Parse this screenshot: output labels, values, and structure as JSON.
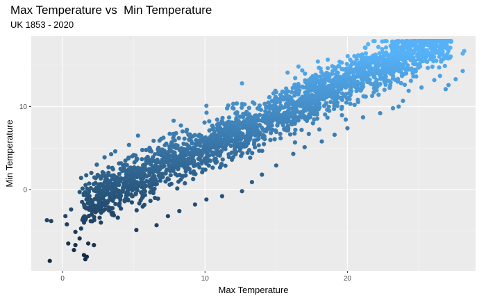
{
  "chart_data": {
    "type": "scatter",
    "title": "Max Temperature vs  Min Temperature",
    "subtitle": "UK 1853 - 2020",
    "xlabel": "Max Temperature",
    "ylabel": "Min Temperature",
    "xlim": [
      -2.2,
      29.0
    ],
    "ylim": [
      -9.8,
      18.5
    ],
    "x_ticks": [
      0,
      10,
      20
    ],
    "y_ticks": [
      0,
      10
    ],
    "grid": true,
    "legend": "none",
    "color_gradient": {
      "low": "#132b43",
      "high": "#56b1f7"
    },
    "trend": {
      "slope": 0.79,
      "intercept": -2.8,
      "spread": 1.5
    },
    "points": [
      [
        -0.9,
        -8.6
      ],
      [
        -0.8,
        -3.8
      ],
      [
        -1.1,
        -3.7
      ],
      [
        0.4,
        -6.5
      ],
      [
        0.9,
        -6.7
      ],
      [
        0.3,
        -4.2
      ],
      [
        1.2,
        -5.9
      ],
      [
        0.6,
        -2.4
      ],
      [
        0.2,
        -3.2
      ],
      [
        1.5,
        -7.9
      ],
      [
        0.8,
        -7.3
      ],
      [
        1.6,
        -8.4
      ],
      [
        1.7,
        -8.1
      ],
      [
        1.8,
        -6.5
      ],
      [
        2.2,
        -6.7
      ],
      [
        0.9,
        -5.1
      ],
      [
        1.3,
        -4.7
      ],
      [
        6.6,
        -4.3
      ],
      [
        7.4,
        -3.2
      ],
      [
        8.2,
        -2.6
      ],
      [
        6.7,
        -1.1
      ],
      [
        9.3,
        -1.8
      ],
      [
        10.1,
        -1.2
      ],
      [
        11.2,
        -0.8
      ],
      [
        12.6,
        -0.2
      ],
      [
        13.3,
        0.9
      ],
      [
        14.0,
        1.8
      ],
      [
        15.0,
        2.9
      ],
      [
        16.2,
        4.3
      ],
      [
        17.0,
        5.1
      ],
      [
        18.2,
        5.8
      ],
      [
        19.1,
        6.6
      ],
      [
        20.0,
        7.4
      ],
      [
        21.1,
        8.7
      ],
      [
        22.3,
        9.2
      ],
      [
        23.2,
        9.8
      ],
      [
        23.6,
        10.0
      ],
      [
        23.9,
        10.7
      ],
      [
        24.3,
        11.9
      ],
      [
        25.2,
        12.3
      ],
      [
        26.1,
        13.2
      ],
      [
        26.5,
        13.7
      ],
      [
        27.6,
        13.3
      ],
      [
        28.1,
        14.3
      ],
      [
        25.9,
        15.9
      ],
      [
        24.4,
        16.9
      ],
      [
        23.9,
        16.6
      ],
      [
        22.0,
        16.0
      ],
      [
        20.9,
        16.1
      ],
      [
        19.6,
        15.3
      ],
      [
        15.8,
        14.1
      ],
      [
        12.6,
        12.8
      ],
      [
        10.1,
        10.1
      ],
      [
        7.8,
        8.3
      ],
      [
        5.3,
        6.5
      ],
      [
        3.7,
        4.6
      ],
      [
        2.4,
        3.0
      ],
      [
        1.3,
        1.4
      ],
      [
        1.2,
        -0.3
      ],
      [
        2.8,
        -1.8
      ],
      [
        4.1,
        -2.3
      ],
      [
        5.2,
        -2.5
      ],
      [
        3.6,
        -3.1
      ],
      [
        2.6,
        -3.4
      ],
      [
        28.2,
        16.7
      ],
      [
        28.1,
        16.4
      ],
      [
        27.2,
        15.9
      ],
      [
        26.6,
        15.6
      ],
      [
        24.9,
        16.1
      ],
      [
        24.5,
        14.6
      ],
      [
        26.9,
        12.1
      ],
      [
        27.1,
        12.6
      ],
      [
        21.3,
        14.9
      ],
      [
        18.6,
        14.0
      ],
      [
        17.8,
        13.3
      ],
      [
        9.8,
        4.7
      ],
      [
        12.4,
        6.3
      ],
      [
        14.7,
        9.1
      ],
      [
        16.6,
        12.4
      ],
      [
        8.3,
        1.2
      ]
    ]
  }
}
